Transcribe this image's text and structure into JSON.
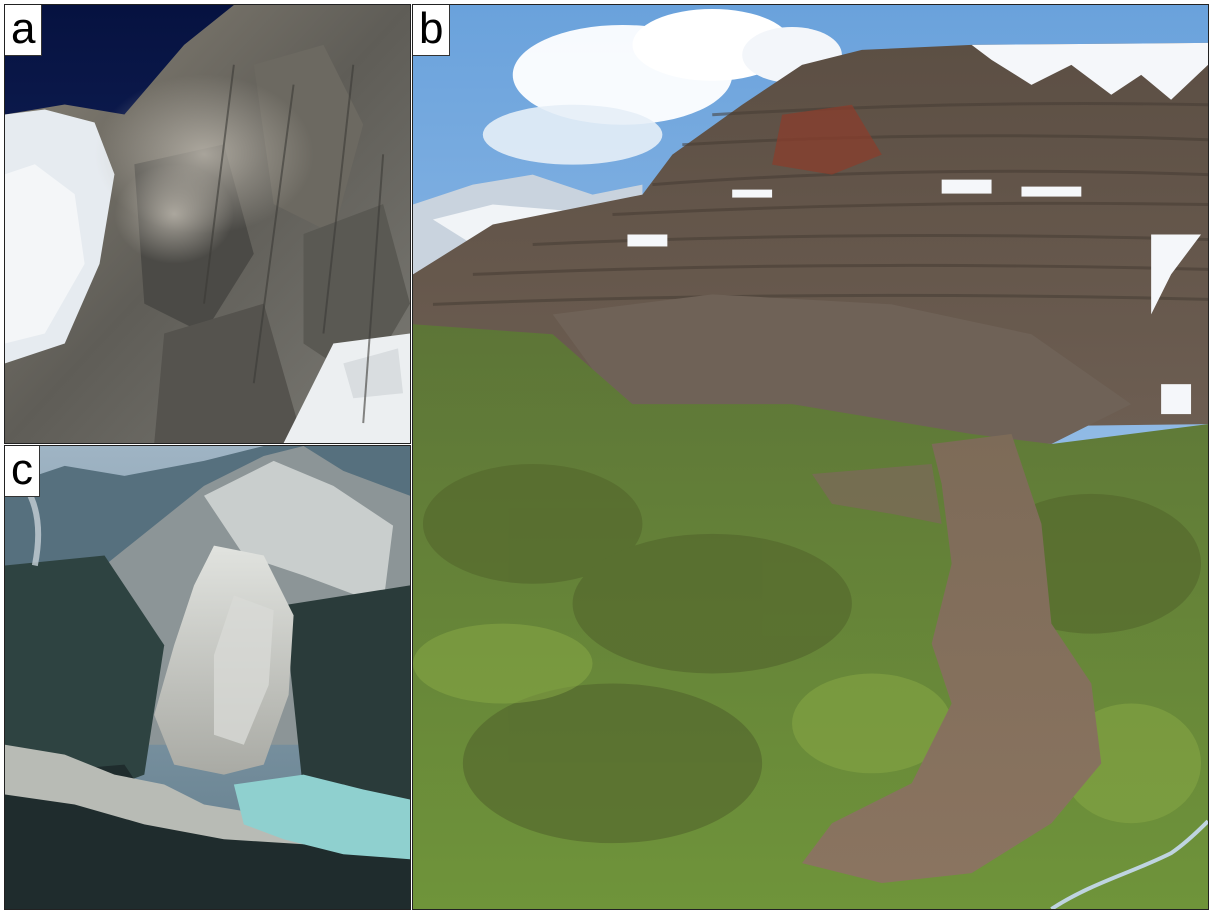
{
  "panels": [
    {
      "id": "a",
      "label": "a",
      "subject": "rock-fall-cliff-photo"
    },
    {
      "id": "b",
      "label": "b",
      "subject": "mountain-debris-slope-photo"
    },
    {
      "id": "c",
      "label": "c",
      "subject": "landslide-valley-aerial-photo"
    }
  ],
  "colors": {
    "sky_dark": "#0b1a4a",
    "sky_blue": "#8fb7e6",
    "rock_gray": "#6f6d66",
    "snow": "#eef2f6",
    "vegetation_green": "#6a8a38",
    "debris_brown": "#7a6650",
    "lake_turquoise": "#8fd0cf"
  }
}
